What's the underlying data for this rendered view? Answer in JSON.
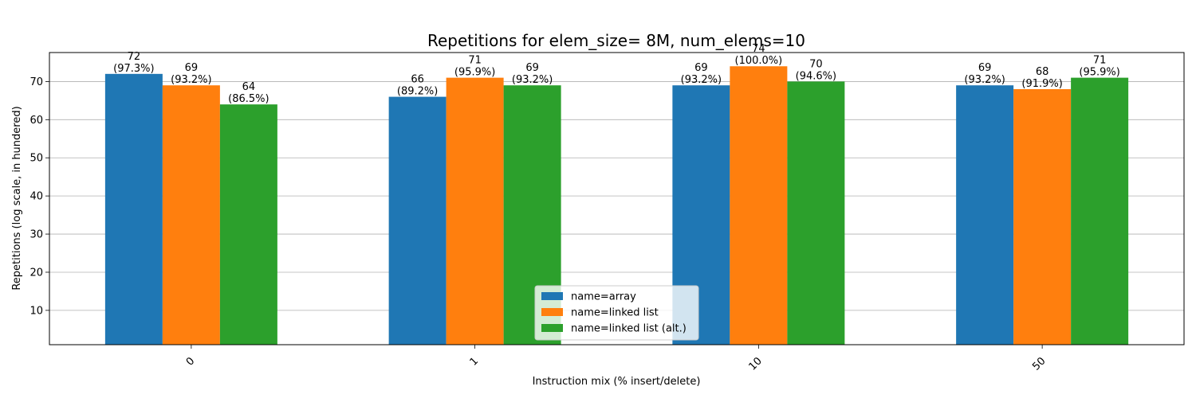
{
  "chart_data": {
    "type": "bar",
    "title": "Repetitions for elem_size= 8M, num_elems=10",
    "xlabel": "Instruction mix (% insert/delete)",
    "ylabel": "Repetitions (log scale, in hundered)",
    "categories": [
      "0",
      "1",
      "10",
      "50"
    ],
    "ylim": [
      1,
      77.6
    ],
    "yticks": [
      10,
      20,
      30,
      40,
      50,
      60,
      70
    ],
    "grid": "y",
    "legend_position": "bottom-center",
    "series": [
      {
        "name": "name=array",
        "color": "#1f77b4",
        "values": [
          72,
          66,
          69,
          69
        ],
        "labels": [
          "72\n(97.3%)",
          "66\n(89.2%)",
          "69\n(93.2%)",
          "69\n(93.2%)"
        ]
      },
      {
        "name": "name=linked list",
        "color": "#ff7f0e",
        "values": [
          69,
          71,
          74,
          68
        ],
        "labels": [
          "69\n(93.2%)",
          "71\n(95.9%)",
          "74\n(100.0%)",
          "68\n(91.9%)"
        ]
      },
      {
        "name": "name=linked list (alt.)",
        "color": "#2ca02c",
        "values": [
          64,
          69,
          70,
          71
        ],
        "labels": [
          "64\n(86.5%)",
          "69\n(93.2%)",
          "70\n(94.6%)",
          "71\n(95.9%)"
        ]
      }
    ]
  }
}
